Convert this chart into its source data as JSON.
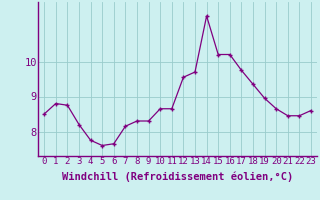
{
  "x": [
    0,
    1,
    2,
    3,
    4,
    5,
    6,
    7,
    8,
    9,
    10,
    11,
    12,
    13,
    14,
    15,
    16,
    17,
    18,
    19,
    20,
    21,
    22,
    23
  ],
  "y": [
    8.5,
    8.8,
    8.75,
    8.2,
    7.75,
    7.6,
    7.65,
    8.15,
    8.3,
    8.3,
    8.65,
    8.65,
    9.55,
    9.7,
    11.3,
    10.2,
    10.2,
    9.75,
    9.35,
    8.95,
    8.65,
    8.45,
    8.45,
    8.6
  ],
  "line_color": "#800080",
  "marker": "+",
  "bg_color": "#cdf0f0",
  "grid_color": "#99cccc",
  "axis_color": "#800080",
  "xlabel": "Windchill (Refroidissement éolien,°C)",
  "xlabel_fontsize": 7.5,
  "tick_fontsize": 6.5,
  "ylim_min": 7.3,
  "ylim_max": 11.7,
  "yticks": [
    8,
    9,
    10
  ],
  "xlim_min": -0.5,
  "xlim_max": 23.5
}
